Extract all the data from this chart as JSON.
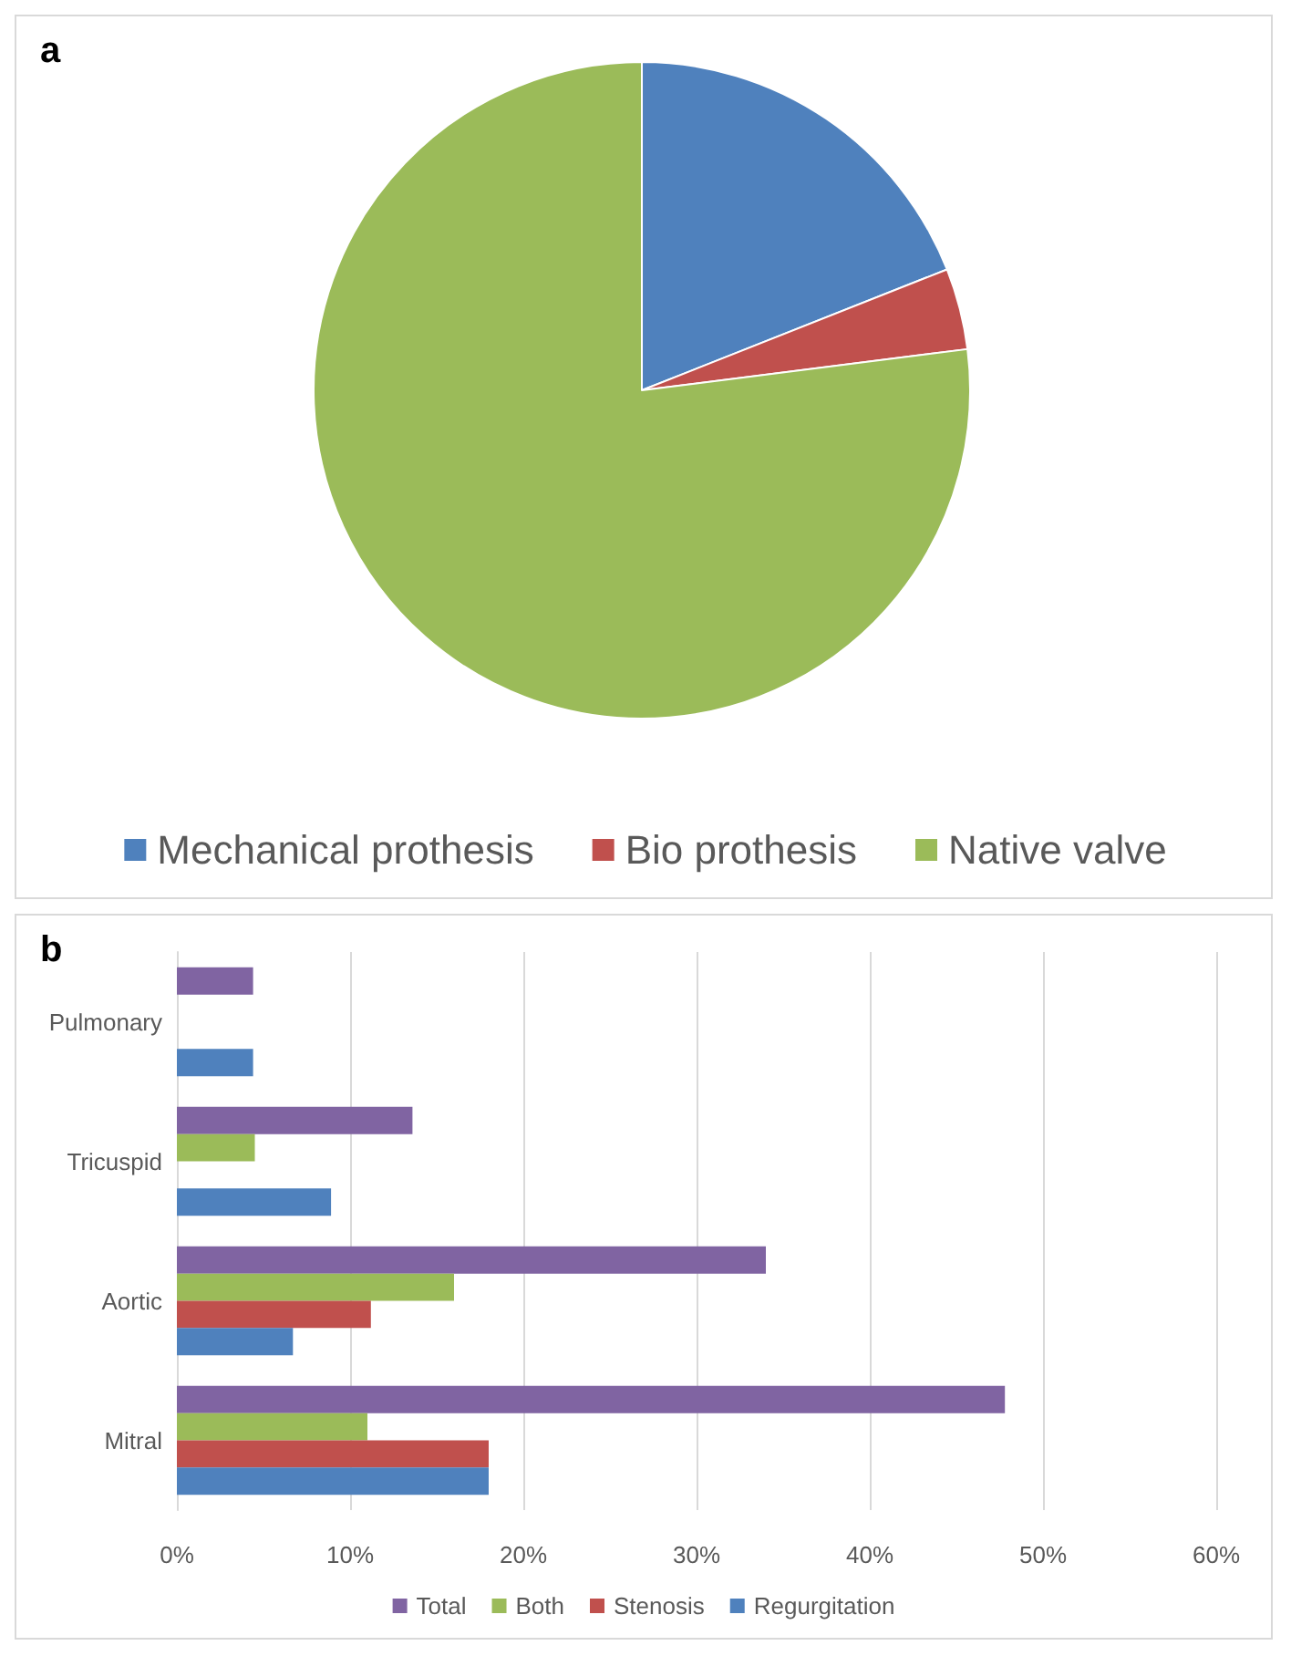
{
  "chart_data": [
    {
      "type": "pie",
      "title": "a",
      "categories": [
        "Mechanical prothesis",
        "Bio prothesis",
        "Native valve"
      ],
      "values": [
        19,
        4,
        77
      ],
      "colors": [
        "#4f81bd",
        "#c0504d",
        "#9bbb59"
      ],
      "legend": "bottom"
    },
    {
      "type": "bar",
      "title": "b",
      "orientation": "horizontal",
      "categories": [
        "Pulmonary",
        "Tricuspid",
        "Aortic",
        "Mitral"
      ],
      "series": [
        {
          "name": "Total",
          "color": "#8064a2",
          "values": [
            4.4,
            13.6,
            34.0,
            47.8
          ]
        },
        {
          "name": "Both",
          "color": "#9bbb59",
          "values": [
            0,
            4.5,
            16.0,
            11.0
          ]
        },
        {
          "name": "Stenosis",
          "color": "#c0504d",
          "values": [
            0,
            0,
            11.2,
            18.0
          ]
        },
        {
          "name": "Regurgitation",
          "color": "#4f81bd",
          "values": [
            4.4,
            8.9,
            6.7,
            18.0
          ]
        }
      ],
      "xlim": [
        0,
        60
      ],
      "xticks": [
        {
          "value": 0,
          "label": "0%"
        },
        {
          "value": 10,
          "label": "10%"
        },
        {
          "value": 20,
          "label": "20%"
        },
        {
          "value": 30,
          "label": "30%"
        },
        {
          "value": 40,
          "label": "40%"
        },
        {
          "value": 50,
          "label": "50%"
        },
        {
          "value": 60,
          "label": "60%"
        }
      ],
      "grid": "x",
      "legend": "bottom"
    }
  ]
}
